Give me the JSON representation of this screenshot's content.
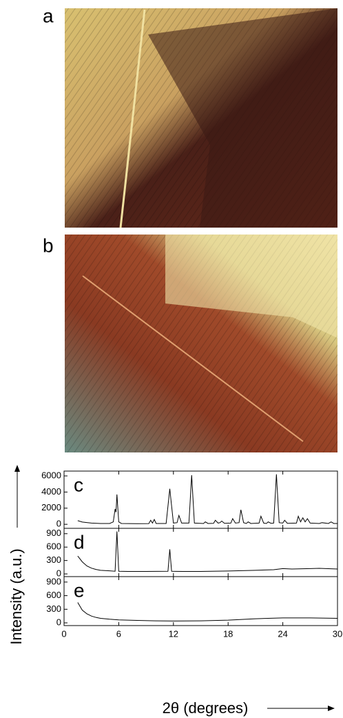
{
  "panels": [
    "a",
    "b"
  ],
  "chart_data": [
    {
      "type": "line",
      "label": "c",
      "color": "#000000",
      "xlim": [
        0,
        30
      ],
      "xticks": [
        0,
        6,
        12,
        18,
        24,
        30
      ],
      "ylim": [
        -500,
        6600
      ],
      "yticks": [
        0,
        2000,
        4000,
        6000
      ],
      "x": [
        1.5,
        2,
        3,
        4,
        5,
        5.4,
        5.6,
        5.7,
        5.8,
        6.0,
        6.3,
        8,
        9.3,
        9.5,
        9.7,
        9.9,
        10.1,
        11.2,
        11.6,
        12.0,
        12.4,
        12.6,
        12.9,
        13.7,
        14.0,
        14.3,
        15.3,
        15.5,
        15.8,
        16.4,
        16.6,
        16.9,
        17.1,
        17.3,
        17.6,
        18.3,
        18.5,
        18.8,
        19.2,
        19.4,
        19.7,
        20.0,
        20.2,
        20.5,
        21.4,
        21.6,
        21.9,
        22.2,
        22.4,
        22.7,
        23.0,
        23.3,
        23.6,
        24.0,
        24.2,
        24.5,
        25.5,
        25.7,
        25.95,
        26.2,
        26.45,
        26.7,
        27.0,
        28.0,
        28.3,
        29.0,
        29.3,
        29.6,
        30
      ],
      "values": [
        450,
        280,
        150,
        100,
        100,
        300,
        1900,
        1500,
        3700,
        300,
        100,
        80,
        90,
        500,
        150,
        600,
        100,
        100,
        4400,
        150,
        200,
        1100,
        150,
        150,
        6100,
        150,
        100,
        300,
        100,
        120,
        500,
        150,
        200,
        400,
        120,
        150,
        700,
        150,
        200,
        1800,
        200,
        100,
        300,
        100,
        150,
        1000,
        150,
        100,
        300,
        120,
        150,
        6200,
        200,
        150,
        500,
        120,
        150,
        1000,
        300,
        800,
        300,
        700,
        150,
        100,
        200,
        100,
        300,
        100,
        100
      ]
    },
    {
      "type": "line",
      "label": "d",
      "color": "#000000",
      "xlim": [
        0,
        30
      ],
      "xticks": [
        0,
        6,
        12,
        18,
        24,
        30
      ],
      "ylim": [
        -60,
        1020
      ],
      "yticks": [
        0,
        300,
        600,
        900
      ],
      "ylabel": "Intensity (a.u.)",
      "x": [
        1.5,
        2,
        2.5,
        3,
        3.5,
        4,
        5,
        5.6,
        5.8,
        6.0,
        7,
        9,
        11.4,
        11.6,
        11.8,
        13,
        15,
        18,
        21,
        23,
        24,
        25,
        27,
        28,
        30
      ],
      "values": [
        400,
        270,
        180,
        130,
        100,
        80,
        70,
        60,
        950,
        60,
        55,
        55,
        60,
        550,
        60,
        55,
        55,
        65,
        80,
        95,
        120,
        110,
        120,
        125,
        110
      ]
    },
    {
      "type": "line",
      "label": "e",
      "color": "#000000",
      "xlim": [
        0,
        30
      ],
      "xticks": [
        0,
        6,
        12,
        18,
        24,
        30
      ],
      "ylim": [
        -60,
        1020
      ],
      "yticks": [
        0,
        300,
        600,
        900
      ],
      "xlabel": "2θ (degrees)",
      "x": [
        1.5,
        2,
        2.5,
        3,
        3.5,
        4,
        5,
        6,
        8,
        10,
        12,
        15,
        18,
        21,
        24,
        27,
        30
      ],
      "values": [
        450,
        280,
        200,
        150,
        120,
        100,
        80,
        65,
        55,
        45,
        40,
        45,
        60,
        90,
        110,
        110,
        100
      ]
    }
  ]
}
